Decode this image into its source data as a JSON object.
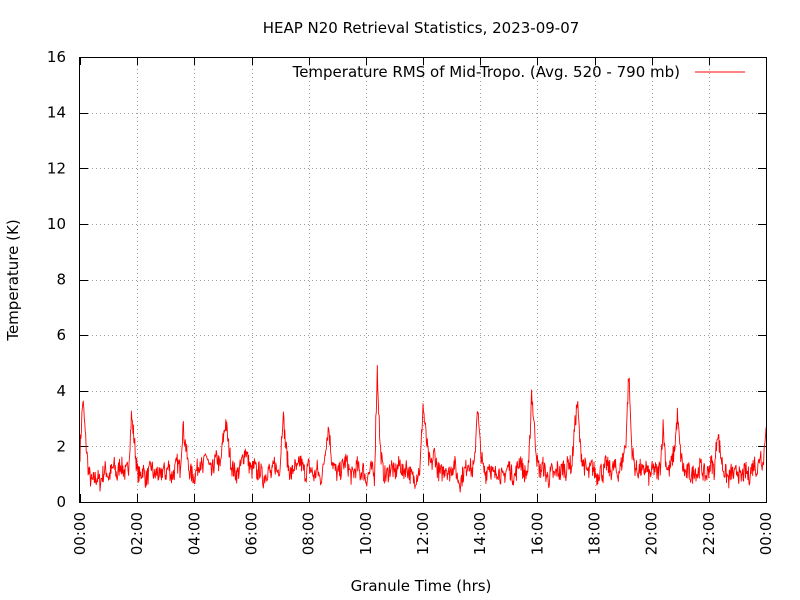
{
  "chart_data": {
    "type": "line",
    "title": "HEAP N20 Retrieval Statistics, 2023-09-07",
    "xlabel": "Granule Time (hrs)",
    "ylabel": "Temperature (K)",
    "xlim": [
      0,
      24
    ],
    "ylim": [
      0,
      16
    ],
    "x_ticks": [
      0,
      2,
      4,
      6,
      8,
      10,
      12,
      14,
      16,
      18,
      20,
      22,
      24
    ],
    "x_tick_labels": [
      "00:00",
      "02:00",
      "04:00",
      "06:00",
      "08:00",
      "10:00",
      "12:00",
      "14:00",
      "16:00",
      "18:00",
      "20:00",
      "22:00",
      "00:00"
    ],
    "y_ticks": [
      0,
      2,
      4,
      6,
      8,
      10,
      12,
      14,
      16
    ],
    "y_tick_labels": [
      "0",
      "2",
      "4",
      "6",
      "8",
      "10",
      "12",
      "14",
      "16"
    ],
    "grid": true,
    "legend_position": "top-right",
    "series": [
      {
        "name": "Temperature RMS of Mid-Tropo. (Avg. 520 - 790 mb)",
        "color": "#ff0000",
        "x_step_hours": 0.1,
        "values": [
          1.8,
          3.7,
          2.2,
          1.1,
          0.7,
          0.8,
          0.9,
          0.7,
          1.0,
          1.2,
          0.9,
          1.1,
          1.3,
          0.9,
          1.4,
          1.2,
          1.0,
          1.3,
          3.1,
          2.2,
          1.1,
          0.9,
          1.2,
          0.8,
          1.0,
          1.3,
          0.9,
          1.1,
          0.8,
          1.2,
          1.0,
          1.3,
          0.9,
          1.1,
          1.4,
          1.2,
          2.7,
          2.0,
          1.2,
          1.0,
          0.9,
          1.2,
          1.5,
          1.1,
          1.8,
          1.3,
          1.0,
          1.4,
          1.6,
          1.2,
          2.2,
          2.9,
          2.0,
          1.3,
          1.1,
          1.0,
          1.2,
          1.6,
          1.9,
          1.4,
          1.1,
          1.3,
          1.0,
          1.2,
          0.8,
          1.0,
          1.2,
          0.9,
          1.4,
          1.1,
          1.3,
          3.2,
          2.0,
          1.2,
          1.0,
          1.3,
          1.1,
          1.5,
          1.2,
          1.0,
          1.3,
          1.1,
          0.9,
          1.2,
          0.8,
          1.1,
          2.1,
          2.7,
          1.6,
          1.2,
          1.0,
          1.1,
          1.3,
          1.5,
          1.2,
          0.9,
          1.1,
          1.3,
          1.0,
          1.2,
          0.8,
          1.0,
          1.2,
          0.9,
          4.8,
          2.0,
          1.1,
          0.9,
          1.1,
          1.3,
          1.0,
          1.2,
          1.4,
          1.0,
          1.3,
          1.1,
          0.9,
          0.8,
          1.0,
          1.2,
          3.5,
          2.4,
          1.5,
          1.3,
          1.8,
          1.2,
          1.0,
          1.1,
          1.3,
          1.0,
          1.2,
          1.4,
          0.9,
          0.7,
          1.0,
          1.2,
          1.5,
          1.1,
          1.3,
          3.5,
          2.0,
          1.2,
          1.0,
          1.4,
          1.1,
          0.9,
          1.2,
          1.0,
          0.8,
          1.1,
          1.3,
          1.0,
          0.9,
          1.2,
          1.6,
          1.1,
          1.0,
          1.2,
          4.0,
          2.6,
          1.4,
          1.1,
          1.3,
          1.0,
          0.8,
          1.1,
          0.9,
          1.2,
          1.0,
          1.3,
          1.1,
          1.5,
          1.2,
          2.6,
          3.6,
          2.0,
          1.4,
          1.2,
          1.0,
          1.3,
          1.1,
          0.9,
          1.2,
          1.0,
          1.4,
          1.2,
          1.1,
          1.3,
          1.0,
          1.2,
          1.6,
          2.2,
          4.6,
          2.0,
          1.3,
          1.1,
          1.2,
          1.0,
          1.3,
          0.9,
          1.1,
          1.2,
          1.0,
          1.3,
          2.7,
          1.4,
          1.1,
          1.4,
          1.9,
          3.1,
          1.8,
          1.2,
          1.0,
          1.1,
          0.9,
          1.2,
          1.0,
          1.3,
          1.1,
          0.9,
          1.2,
          1.4,
          1.1,
          2.6,
          1.8,
          1.2,
          1.0,
          0.8,
          1.1,
          0.9,
          1.2,
          0.8,
          1.0,
          1.1,
          0.9,
          1.2,
          1.4,
          1.1,
          1.8,
          1.3,
          2.9,
          1.6,
          2.6
        ]
      }
    ]
  }
}
